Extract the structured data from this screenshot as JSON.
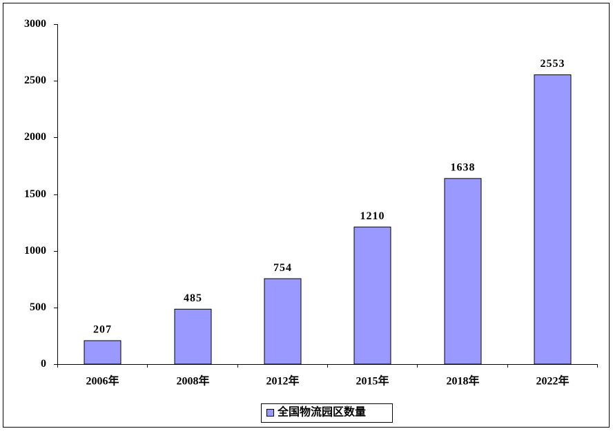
{
  "chart_data": {
    "type": "bar",
    "categories": [
      "2006年",
      "2008年",
      "2012年",
      "2015年",
      "2018年",
      "2022年"
    ],
    "series": [
      {
        "name": "全国物流园区数量",
        "color": "#9999ff",
        "values": [
          207,
          485,
          754,
          1210,
          1638,
          2553
        ]
      }
    ],
    "ylim": [
      0,
      3000
    ],
    "yticks": [
      0,
      500,
      1000,
      1500,
      2000,
      2500,
      3000
    ],
    "grid": false,
    "legend": "bottom",
    "data_labels": true
  }
}
